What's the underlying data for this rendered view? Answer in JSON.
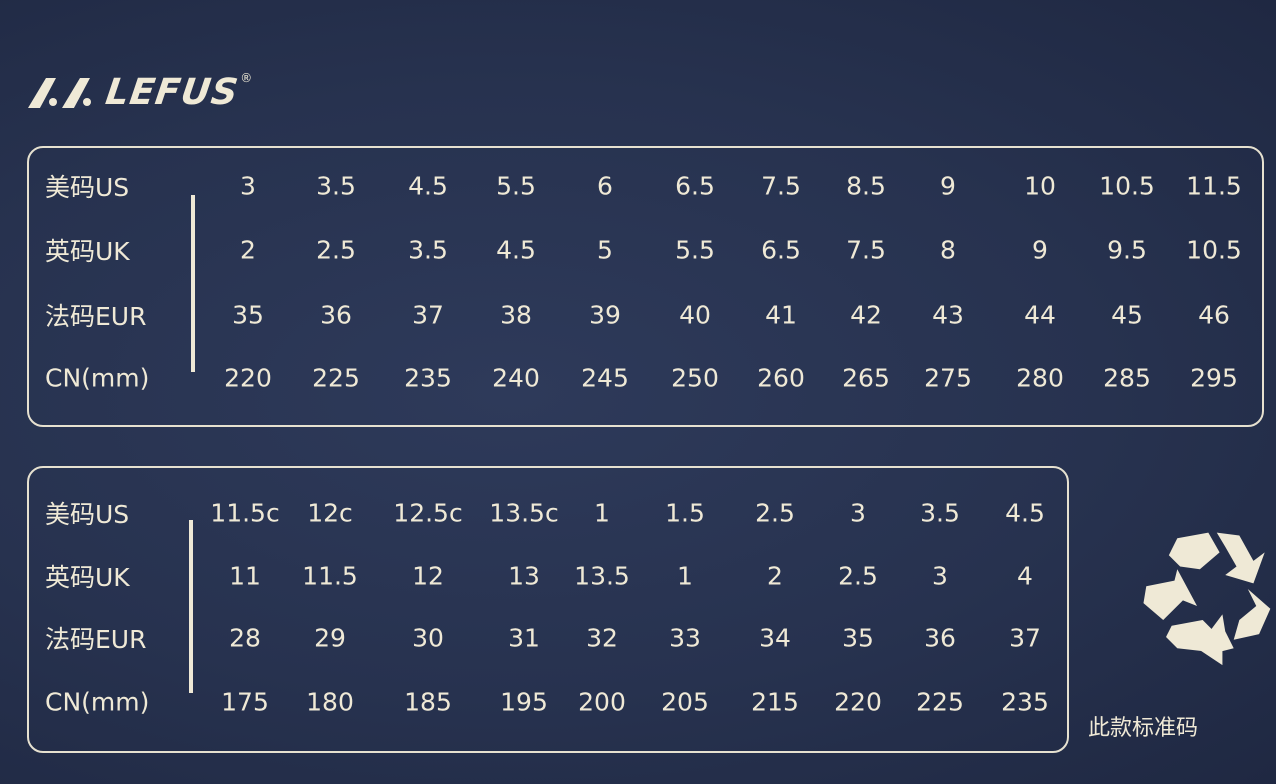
{
  "brand": {
    "name": "LEFUS",
    "registered_mark": "®"
  },
  "tables": [
    {
      "row_labels": [
        "美码US",
        "英码UK",
        "法码EUR",
        "CN(mm)"
      ],
      "rows": [
        [
          "3",
          "3.5",
          "4.5",
          "5.5",
          "6",
          "6.5",
          "7.5",
          "8.5",
          "9",
          "10",
          "10.5",
          "11.5"
        ],
        [
          "2",
          "2.5",
          "3.5",
          "4.5",
          "5",
          "5.5",
          "6.5",
          "7.5",
          "8",
          "9",
          "9.5",
          "10.5"
        ],
        [
          "35",
          "36",
          "37",
          "38",
          "39",
          "40",
          "41",
          "42",
          "43",
          "44",
          "45",
          "46"
        ],
        [
          "220",
          "225",
          "235",
          "240",
          "245",
          "250",
          "260",
          "265",
          "275",
          "280",
          "285",
          "295"
        ]
      ]
    },
    {
      "row_labels": [
        "美码US",
        "英码UK",
        "法码EUR",
        "CN(mm)"
      ],
      "rows": [
        [
          "11.5c",
          "12c",
          "12.5c",
          "13.5c",
          "1",
          "1.5",
          "2.5",
          "3",
          "3.5",
          "4.5"
        ],
        [
          "11",
          "11.5",
          "12",
          "13",
          "13.5",
          "1",
          "2",
          "2.5",
          "3",
          "4"
        ],
        [
          "28",
          "29",
          "30",
          "31",
          "32",
          "33",
          "34",
          "35",
          "36",
          "37"
        ],
        [
          "175",
          "180",
          "185",
          "195",
          "200",
          "205",
          "215",
          "220",
          "225",
          "235"
        ]
      ]
    }
  ],
  "recycle_icon": "recycle-icon",
  "caption": "此款标准码",
  "colors": {
    "background": "#27324f",
    "ink": "#efe9d6"
  }
}
